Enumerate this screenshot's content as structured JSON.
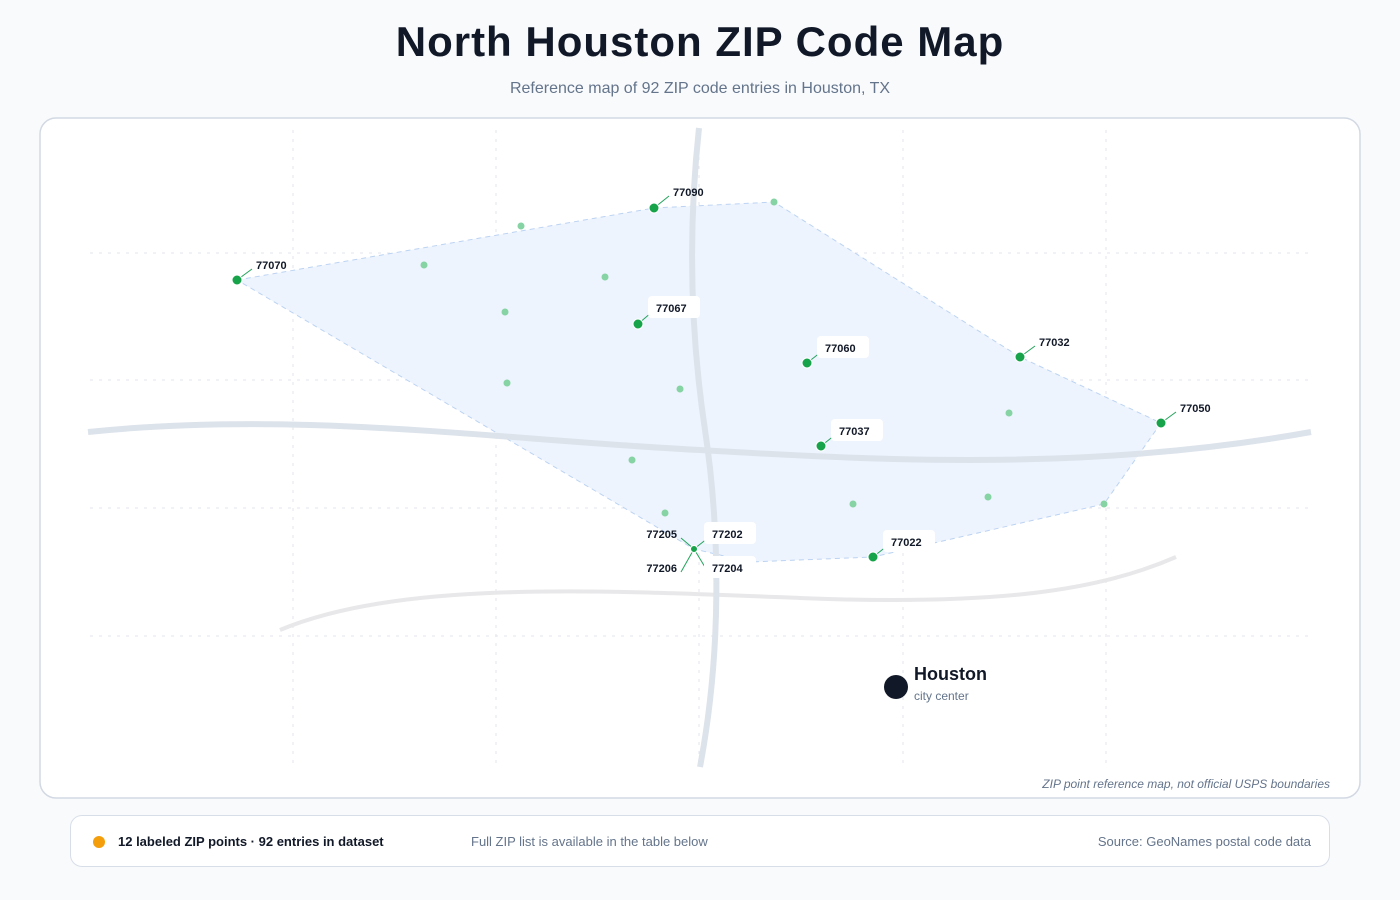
{
  "header": {
    "title": "North Houston ZIP Code Map",
    "subtitle": "Reference map of 92 ZIP code entries in Houston, TX"
  },
  "map": {
    "zip_labels": [
      "77090",
      "77070",
      "77067",
      "77060",
      "77032",
      "77050",
      "77037",
      "77022",
      "77205",
      "77202",
      "77206",
      "77204"
    ],
    "city": {
      "name": "Houston",
      "subtitle": "city center"
    },
    "note": "ZIP point reference map, not official USPS boundaries"
  },
  "footer": {
    "summary": "12 labeled ZIP points · 92 entries in dataset",
    "hint": "Full ZIP list is available in the table below",
    "source": "Source: GeoNames postal code data"
  }
}
